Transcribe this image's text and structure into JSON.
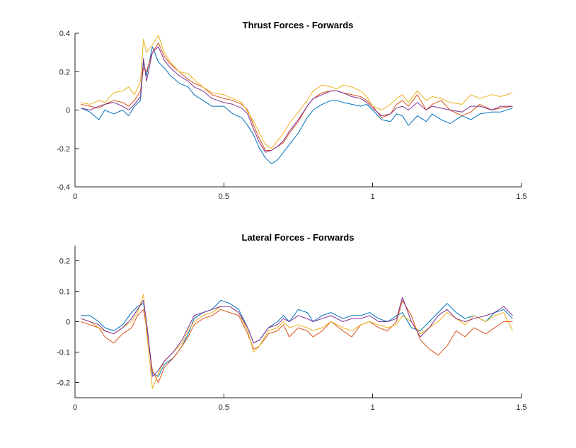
{
  "chart_data": [
    {
      "type": "line",
      "title": "Thrust Forces - Forwards",
      "xlabel": "",
      "ylabel": "",
      "xlim": [
        0,
        1.5
      ],
      "ylim": [
        -0.4,
        0.4
      ],
      "xticks": [
        0,
        0.5,
        1,
        1.5
      ],
      "xtick_labels": [
        "0",
        "0.5",
        "1",
        "1.5"
      ],
      "yticks": [
        -0.4,
        -0.2,
        0,
        0.2,
        0.4
      ],
      "ytick_labels": [
        "-0.4",
        "-0.2",
        "0",
        "0.2",
        "0.4"
      ],
      "grid": false,
      "legend": "none",
      "series": [
        {
          "color": "#0072BD",
          "x": [
            0.02,
            0.05,
            0.08,
            0.1,
            0.13,
            0.16,
            0.18,
            0.2,
            0.22,
            0.23,
            0.24,
            0.26,
            0.28,
            0.3,
            0.32,
            0.35,
            0.38,
            0.4,
            0.43,
            0.46,
            0.5,
            0.53,
            0.56,
            0.58,
            0.6,
            0.62,
            0.64,
            0.66,
            0.68,
            0.7,
            0.72,
            0.75,
            0.78,
            0.8,
            0.83,
            0.86,
            0.88,
            0.9,
            0.93,
            0.96,
            0.98,
            1.0,
            1.03,
            1.06,
            1.08,
            1.1,
            1.12,
            1.15,
            1.18,
            1.2,
            1.23,
            1.26,
            1.3,
            1.33,
            1.36,
            1.4,
            1.43,
            1.47
          ],
          "y": [
            0.01,
            -0.01,
            -0.05,
            0.0,
            -0.02,
            0.0,
            -0.03,
            0.02,
            0.05,
            0.25,
            0.18,
            0.33,
            0.25,
            0.22,
            0.18,
            0.14,
            0.12,
            0.08,
            0.05,
            0.02,
            0.02,
            -0.02,
            -0.04,
            -0.08,
            -0.13,
            -0.2,
            -0.25,
            -0.28,
            -0.26,
            -0.22,
            -0.18,
            -0.12,
            -0.04,
            0.0,
            0.03,
            0.05,
            0.05,
            0.04,
            0.03,
            0.02,
            0.03,
            0.0,
            -0.05,
            -0.06,
            -0.02,
            -0.03,
            -0.08,
            -0.03,
            -0.06,
            -0.02,
            -0.05,
            -0.07,
            -0.03,
            -0.05,
            -0.02,
            -0.01,
            -0.01,
            0.01
          ]
        },
        {
          "color": "#D95319",
          "x": [
            0.02,
            0.05,
            0.08,
            0.1,
            0.13,
            0.16,
            0.18,
            0.2,
            0.22,
            0.23,
            0.24,
            0.26,
            0.28,
            0.3,
            0.32,
            0.35,
            0.38,
            0.4,
            0.43,
            0.46,
            0.5,
            0.53,
            0.56,
            0.58,
            0.6,
            0.62,
            0.64,
            0.66,
            0.68,
            0.7,
            0.72,
            0.75,
            0.78,
            0.8,
            0.83,
            0.86,
            0.88,
            0.9,
            0.93,
            0.96,
            0.98,
            1.0,
            1.03,
            1.06,
            1.08,
            1.1,
            1.12,
            1.15,
            1.18,
            1.2,
            1.23,
            1.26,
            1.3,
            1.33,
            1.36,
            1.4,
            1.43,
            1.47
          ],
          "y": [
            0.03,
            0.02,
            0.01,
            0.03,
            0.05,
            0.04,
            0.02,
            0.05,
            0.1,
            0.22,
            0.2,
            0.3,
            0.35,
            0.28,
            0.24,
            0.2,
            0.16,
            0.14,
            0.12,
            0.08,
            0.06,
            0.05,
            0.03,
            0.0,
            -0.08,
            -0.15,
            -0.21,
            -0.21,
            -0.19,
            -0.17,
            -0.12,
            -0.06,
            0.02,
            0.06,
            0.09,
            0.1,
            0.1,
            0.09,
            0.08,
            0.07,
            0.05,
            0.02,
            -0.04,
            -0.02,
            0.03,
            0.05,
            0.02,
            0.08,
            0.0,
            0.03,
            0.05,
            0.0,
            -0.03,
            -0.01,
            0.03,
            0.0,
            0.01,
            0.02
          ]
        },
        {
          "color": "#EDB120",
          "x": [
            0.02,
            0.05,
            0.08,
            0.1,
            0.13,
            0.16,
            0.18,
            0.2,
            0.22,
            0.23,
            0.24,
            0.26,
            0.28,
            0.3,
            0.32,
            0.35,
            0.38,
            0.4,
            0.43,
            0.46,
            0.5,
            0.53,
            0.56,
            0.58,
            0.6,
            0.62,
            0.64,
            0.66,
            0.68,
            0.7,
            0.72,
            0.75,
            0.78,
            0.8,
            0.83,
            0.86,
            0.88,
            0.9,
            0.93,
            0.96,
            0.98,
            1.0,
            1.03,
            1.06,
            1.08,
            1.1,
            1.12,
            1.15,
            1.18,
            1.2,
            1.23,
            1.26,
            1.3,
            1.33,
            1.36,
            1.4,
            1.43,
            1.47
          ],
          "y": [
            0.04,
            0.03,
            0.05,
            0.04,
            0.09,
            0.1,
            0.12,
            0.08,
            0.15,
            0.37,
            0.3,
            0.34,
            0.39,
            0.3,
            0.25,
            0.2,
            0.19,
            0.16,
            0.12,
            0.09,
            0.08,
            0.06,
            0.04,
            -0.01,
            -0.06,
            -0.12,
            -0.18,
            -0.2,
            -0.16,
            -0.12,
            -0.07,
            -0.01,
            0.05,
            0.1,
            0.13,
            0.12,
            0.11,
            0.13,
            0.12,
            0.1,
            0.07,
            0.02,
            0.0,
            0.03,
            0.06,
            0.08,
            0.04,
            0.1,
            0.05,
            0.07,
            0.06,
            0.04,
            0.03,
            0.08,
            0.06,
            0.08,
            0.07,
            0.09
          ]
        },
        {
          "color": "#7E2F8E",
          "x": [
            0.02,
            0.05,
            0.08,
            0.1,
            0.13,
            0.16,
            0.18,
            0.2,
            0.22,
            0.23,
            0.24,
            0.26,
            0.28,
            0.3,
            0.32,
            0.35,
            0.38,
            0.4,
            0.43,
            0.46,
            0.5,
            0.53,
            0.56,
            0.58,
            0.6,
            0.62,
            0.64,
            0.66,
            0.68,
            0.7,
            0.72,
            0.75,
            0.78,
            0.8,
            0.83,
            0.86,
            0.88,
            0.9,
            0.93,
            0.96,
            0.98,
            1.0,
            1.03,
            1.06,
            1.08,
            1.1,
            1.12,
            1.15,
            1.18,
            1.2,
            1.23,
            1.26,
            1.3,
            1.33,
            1.36,
            1.4,
            1.43,
            1.47
          ],
          "y": [
            0.01,
            0.0,
            0.02,
            0.03,
            0.04,
            0.02,
            0.0,
            0.03,
            0.07,
            0.27,
            0.15,
            0.3,
            0.33,
            0.26,
            0.22,
            0.18,
            0.15,
            0.12,
            0.1,
            0.06,
            0.04,
            0.03,
            0.01,
            -0.02,
            -0.1,
            -0.17,
            -0.22,
            -0.21,
            -0.19,
            -0.16,
            -0.11,
            -0.05,
            0.02,
            0.06,
            0.08,
            0.1,
            0.1,
            0.09,
            0.07,
            0.06,
            0.04,
            0.01,
            -0.03,
            -0.02,
            0.01,
            0.02,
            0.0,
            0.04,
            0.0,
            0.02,
            0.01,
            0.0,
            -0.01,
            0.02,
            0.02,
            0.0,
            0.02,
            0.02
          ]
        }
      ]
    },
    {
      "type": "line",
      "title": "Lateral Forces - Forwards",
      "xlabel": "",
      "ylabel": "",
      "xlim": [
        0,
        1.5
      ],
      "ylim": [
        -0.25,
        0.25
      ],
      "xticks": [
        0,
        0.5,
        1,
        1.5
      ],
      "xtick_labels": [
        "0",
        "0.5",
        "1",
        "1.5"
      ],
      "yticks": [
        -0.2,
        -0.1,
        0,
        0.1,
        0.2
      ],
      "ytick_labels": [
        "-0.2",
        "-0.1",
        "0",
        "0.1",
        "0.2"
      ],
      "grid": false,
      "legend": "none",
      "series": [
        {
          "color": "#0072BD",
          "x": [
            0.02,
            0.05,
            0.08,
            0.1,
            0.13,
            0.16,
            0.19,
            0.21,
            0.23,
            0.24,
            0.26,
            0.28,
            0.3,
            0.33,
            0.36,
            0.38,
            0.4,
            0.43,
            0.46,
            0.49,
            0.52,
            0.55,
            0.58,
            0.6,
            0.62,
            0.65,
            0.68,
            0.7,
            0.72,
            0.75,
            0.78,
            0.8,
            0.83,
            0.86,
            0.9,
            0.93,
            0.96,
            0.99,
            1.02,
            1.05,
            1.08,
            1.1,
            1.13,
            1.16,
            1.19,
            1.22,
            1.25,
            1.28,
            1.31,
            1.34,
            1.38,
            1.41,
            1.44,
            1.47
          ],
          "y": [
            0.02,
            0.02,
            0.0,
            -0.02,
            -0.03,
            -0.01,
            0.03,
            0.05,
            0.06,
            0.0,
            -0.17,
            -0.18,
            -0.14,
            -0.12,
            -0.08,
            -0.04,
            0.01,
            0.03,
            0.04,
            0.07,
            0.06,
            0.04,
            -0.02,
            -0.07,
            -0.06,
            -0.02,
            0.0,
            0.02,
            0.0,
            0.04,
            0.03,
            0.0,
            0.02,
            0.03,
            0.01,
            0.02,
            0.02,
            0.03,
            0.01,
            0.0,
            0.02,
            0.03,
            -0.02,
            -0.03,
            0.0,
            0.03,
            0.06,
            0.03,
            0.01,
            0.02,
            0.0,
            0.03,
            0.04,
            0.01
          ]
        },
        {
          "color": "#D95319",
          "x": [
            0.02,
            0.05,
            0.08,
            0.1,
            0.13,
            0.16,
            0.19,
            0.21,
            0.23,
            0.24,
            0.26,
            0.28,
            0.3,
            0.33,
            0.36,
            0.38,
            0.4,
            0.43,
            0.46,
            0.49,
            0.52,
            0.55,
            0.58,
            0.6,
            0.62,
            0.65,
            0.68,
            0.7,
            0.72,
            0.75,
            0.78,
            0.8,
            0.83,
            0.86,
            0.9,
            0.93,
            0.96,
            0.99,
            1.02,
            1.05,
            1.08,
            1.1,
            1.13,
            1.16,
            1.19,
            1.22,
            1.25,
            1.28,
            1.31,
            1.34,
            1.38,
            1.41,
            1.44,
            1.47
          ],
          "y": [
            0.0,
            -0.01,
            -0.02,
            -0.05,
            -0.07,
            -0.04,
            -0.02,
            0.02,
            0.04,
            -0.02,
            -0.16,
            -0.2,
            -0.15,
            -0.12,
            -0.08,
            -0.05,
            -0.01,
            0.01,
            0.02,
            0.04,
            0.03,
            0.02,
            -0.04,
            -0.09,
            -0.08,
            -0.04,
            -0.03,
            -0.01,
            -0.05,
            -0.02,
            -0.03,
            -0.05,
            -0.03,
            0.0,
            -0.03,
            -0.05,
            -0.01,
            0.0,
            -0.02,
            -0.03,
            0.0,
            0.07,
            0.02,
            -0.06,
            -0.09,
            -0.11,
            -0.08,
            -0.03,
            -0.05,
            -0.02,
            -0.04,
            -0.02,
            0.0,
            0.0
          ]
        },
        {
          "color": "#EDB120",
          "x": [
            0.02,
            0.05,
            0.08,
            0.1,
            0.13,
            0.16,
            0.19,
            0.21,
            0.23,
            0.24,
            0.26,
            0.28,
            0.3,
            0.33,
            0.36,
            0.38,
            0.4,
            0.43,
            0.46,
            0.49,
            0.52,
            0.55,
            0.58,
            0.6,
            0.62,
            0.65,
            0.68,
            0.7,
            0.72,
            0.75,
            0.78,
            0.8,
            0.83,
            0.86,
            0.9,
            0.93,
            0.96,
            0.99,
            1.02,
            1.05,
            1.08,
            1.1,
            1.13,
            1.16,
            1.19,
            1.22,
            1.25,
            1.28,
            1.31,
            1.34,
            1.38,
            1.41,
            1.44,
            1.47
          ],
          "y": [
            0.01,
            0.0,
            -0.02,
            -0.03,
            -0.04,
            -0.02,
            0.0,
            0.03,
            0.09,
            -0.03,
            -0.22,
            -0.17,
            -0.13,
            -0.1,
            -0.07,
            -0.03,
            0.0,
            0.02,
            0.03,
            0.05,
            0.05,
            0.03,
            -0.03,
            -0.1,
            -0.08,
            -0.03,
            -0.02,
            0.0,
            -0.02,
            -0.01,
            -0.02,
            -0.03,
            -0.02,
            0.0,
            -0.02,
            -0.03,
            -0.01,
            0.0,
            -0.01,
            -0.02,
            -0.01,
            0.02,
            0.0,
            -0.04,
            -0.02,
            0.0,
            0.03,
            0.01,
            -0.01,
            0.02,
            0.0,
            0.02,
            0.03,
            -0.03
          ]
        },
        {
          "color": "#7E2F8E",
          "x": [
            0.02,
            0.05,
            0.08,
            0.1,
            0.13,
            0.16,
            0.19,
            0.21,
            0.23,
            0.24,
            0.26,
            0.28,
            0.3,
            0.33,
            0.36,
            0.38,
            0.4,
            0.43,
            0.46,
            0.49,
            0.52,
            0.55,
            0.58,
            0.6,
            0.62,
            0.65,
            0.68,
            0.7,
            0.72,
            0.75,
            0.78,
            0.8,
            0.83,
            0.86,
            0.9,
            0.93,
            0.96,
            0.99,
            1.02,
            1.05,
            1.08,
            1.1,
            1.13,
            1.16,
            1.19,
            1.22,
            1.25,
            1.28,
            1.31,
            1.34,
            1.38,
            1.41,
            1.44,
            1.47
          ],
          "y": [
            0.01,
            0.0,
            -0.01,
            -0.03,
            -0.04,
            -0.02,
            0.01,
            0.04,
            0.07,
            0.0,
            -0.18,
            -0.16,
            -0.13,
            -0.1,
            -0.06,
            -0.02,
            0.02,
            0.03,
            0.04,
            0.05,
            0.05,
            0.03,
            -0.02,
            -0.07,
            -0.06,
            -0.02,
            -0.01,
            0.01,
            0.0,
            0.02,
            0.01,
            0.0,
            0.01,
            0.02,
            0.0,
            0.01,
            0.01,
            0.02,
            0.0,
            0.0,
            0.01,
            0.08,
            0.0,
            -0.05,
            -0.02,
            0.02,
            0.04,
            0.01,
            0.0,
            0.01,
            0.02,
            0.03,
            0.05,
            0.02
          ]
        }
      ]
    }
  ]
}
